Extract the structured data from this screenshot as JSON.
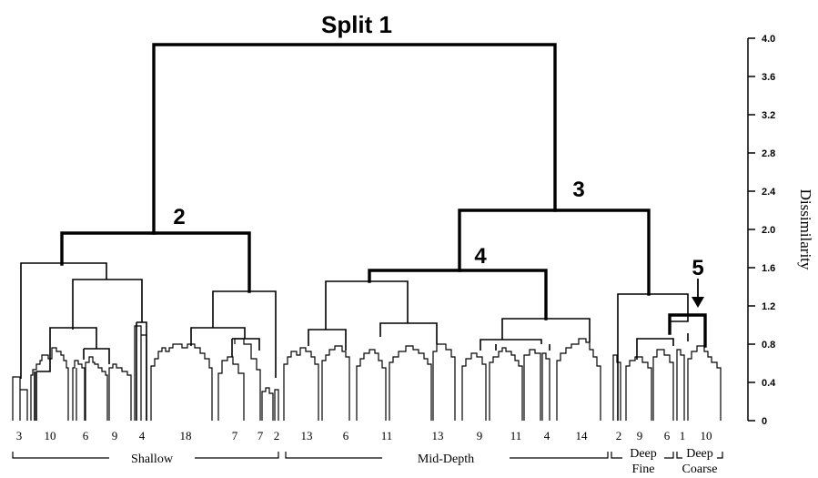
{
  "axis": {
    "title": "Dissimilarity",
    "ticks": [
      "4.0",
      "3.6",
      "3.2",
      "2.8",
      "2.4",
      "2.0",
      "1.6",
      "1.2",
      "0.8",
      "0.4",
      "0"
    ]
  },
  "splits": {
    "s1": "Split  1",
    "s2": "2",
    "s3": "3",
    "s4": "4",
    "s5": "5"
  },
  "leaf_counts": [
    "3",
    "10",
    "6",
    "9",
    "4",
    "18",
    "7",
    "7",
    "2",
    "13",
    "6",
    "11",
    "13",
    "9",
    "11",
    "4",
    "14",
    "2",
    "9",
    "6",
    "1",
    "10"
  ],
  "groups": {
    "shallow": "Shallow",
    "mid_depth": "Mid-Depth",
    "deep_fine_1": "Deep",
    "deep_fine_2": "Fine",
    "deep_coarse_1": "Deep",
    "deep_coarse_2": "Coarse"
  }
}
